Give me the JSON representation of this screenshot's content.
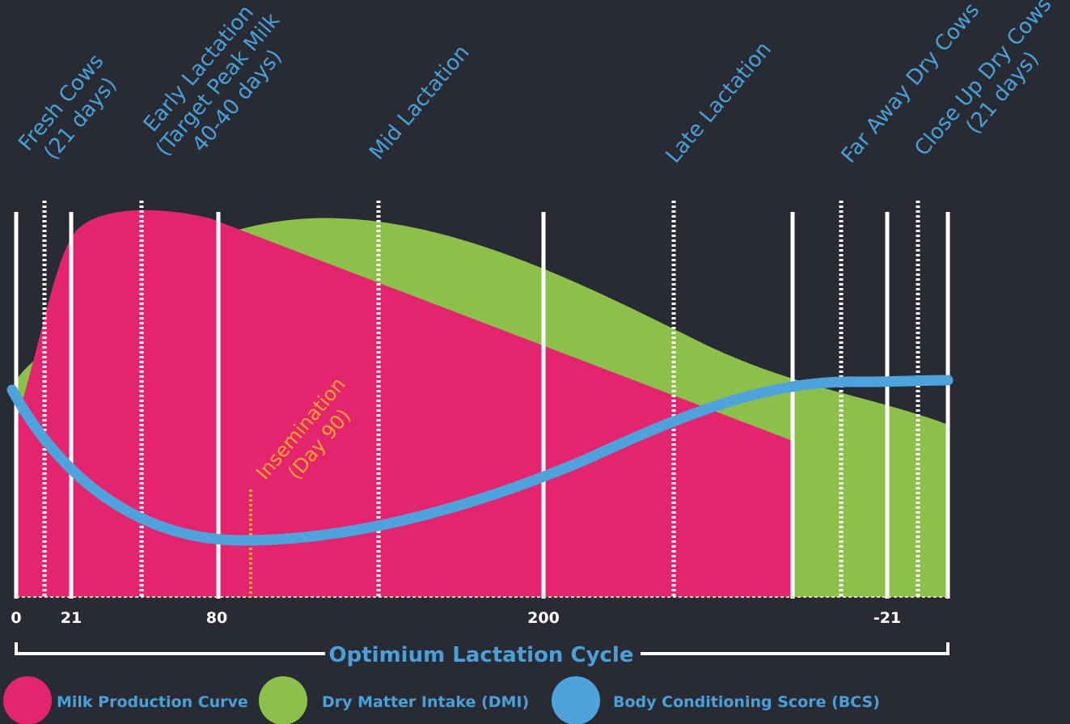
{
  "stages": [
    {
      "lines": [
        "Fresh Cows",
        "(21 days)"
      ]
    },
    {
      "lines": [
        "Early Lactation",
        "(Target Peak Milk",
        "40-40 days)"
      ]
    },
    {
      "lines": [
        "Mid Lactation"
      ]
    },
    {
      "lines": [
        "Late Lactation"
      ]
    },
    {
      "lines": [
        "Far Away Dry Cows"
      ]
    },
    {
      "lines": [
        "Close Up Dry Cows",
        "(21 days)"
      ]
    }
  ],
  "insemination": {
    "lines": [
      "Insemination",
      "(Day 90)"
    ]
  },
  "axis": {
    "ticks": [
      "0",
      "21",
      "80",
      "200",
      "-21"
    ],
    "title": "Optimium Lactation Cycle"
  },
  "legend": [
    "Milk Production Curve",
    "Dry Matter Intake (DMI)",
    "Body Conditioning Score (BCS)"
  ]
}
